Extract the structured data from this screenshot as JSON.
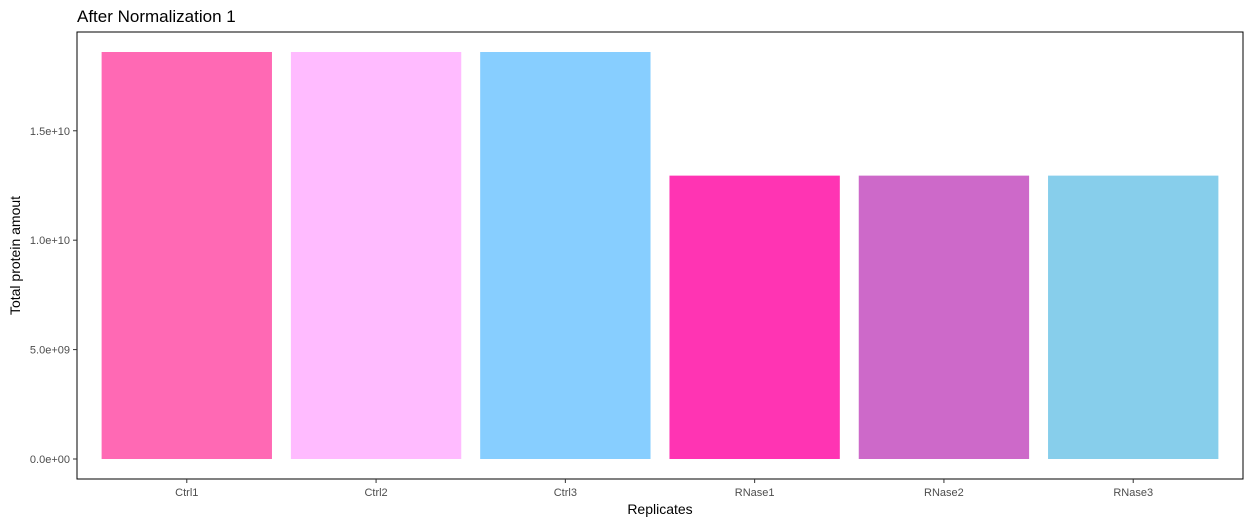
{
  "chart_data": {
    "type": "bar",
    "title": "After Normalization 1",
    "xlabel": "Replicates",
    "ylabel": "Total protein amout",
    "categories": [
      "Ctrl1",
      "Ctrl2",
      "Ctrl3",
      "RNase1",
      "RNase2",
      "RNase3"
    ],
    "values": [
      18600000000,
      18600000000,
      18600000000,
      12950000000,
      12950000000,
      12950000000
    ],
    "colors": [
      "#FF69B4",
      "#FFBBFF",
      "#87CEFF",
      "#FF34B3",
      "#CD69C9",
      "#87CEEB"
    ],
    "ylim": [
      0,
      19500000000
    ],
    "yticks": [
      0,
      5000000000,
      10000000000,
      15000000000
    ],
    "ytick_labels": [
      "0.0e+00",
      "5.0e+09",
      "1.0e+10",
      "1.5e+10"
    ],
    "grid": false,
    "legend": "none"
  }
}
